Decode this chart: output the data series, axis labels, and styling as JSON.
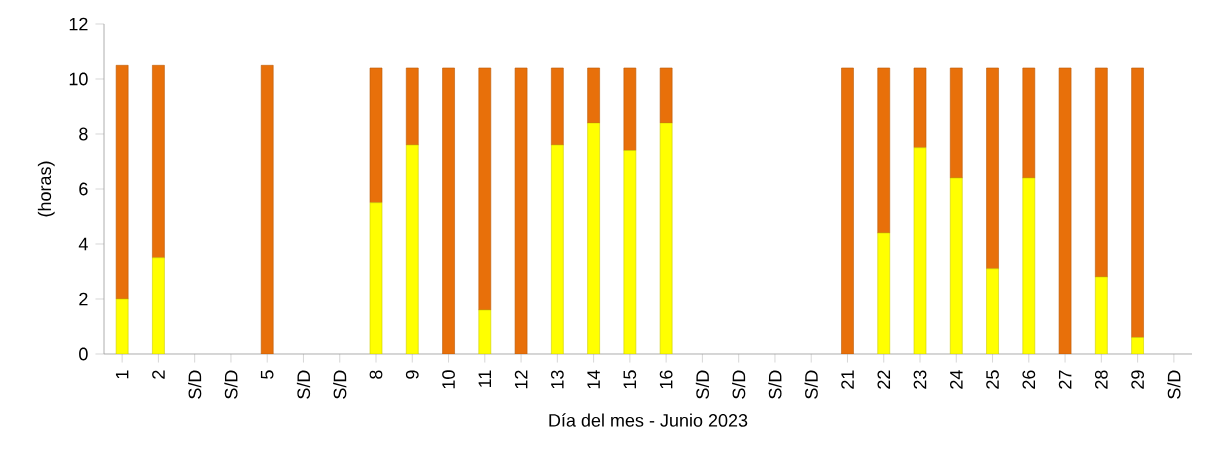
{
  "chart_data": {
    "type": "bar",
    "stacked": true,
    "xlabel": "Día del mes - Junio 2023",
    "ylabel": "(horas)",
    "categories": [
      "1",
      "2",
      "S/D",
      "S/D",
      "5",
      "S/D",
      "S/D",
      "8",
      "9",
      "10",
      "11",
      "12",
      "13",
      "14",
      "15",
      "16",
      "S/D",
      "S/D",
      "S/D",
      "S/D",
      "21",
      "22",
      "23",
      "24",
      "25",
      "26",
      "27",
      "28",
      "29",
      "S/D"
    ],
    "series": [
      {
        "color": "#ffff00",
        "values": [
          2.0,
          3.5,
          0,
          0,
          0,
          0,
          0,
          5.5,
          7.6,
          0,
          1.6,
          0,
          7.6,
          8.4,
          7.4,
          8.4,
          0,
          0,
          0,
          0,
          0,
          4.4,
          7.5,
          6.4,
          3.1,
          6.4,
          0,
          2.8,
          0.6,
          0
        ]
      },
      {
        "color": "#e8700a",
        "values": [
          8.5,
          7.0,
          0,
          0,
          10.5,
          0,
          0,
          4.9,
          2.8,
          10.4,
          8.8,
          10.4,
          2.8,
          2.0,
          3.0,
          2.0,
          0,
          0,
          0,
          0,
          10.4,
          6.0,
          2.9,
          4.0,
          7.3,
          4.0,
          10.4,
          7.6,
          9.8,
          0
        ]
      }
    ],
    "ylim": [
      0,
      12
    ],
    "yticks": [
      0,
      2,
      4,
      6,
      8,
      10,
      12
    ],
    "grid": false
  }
}
